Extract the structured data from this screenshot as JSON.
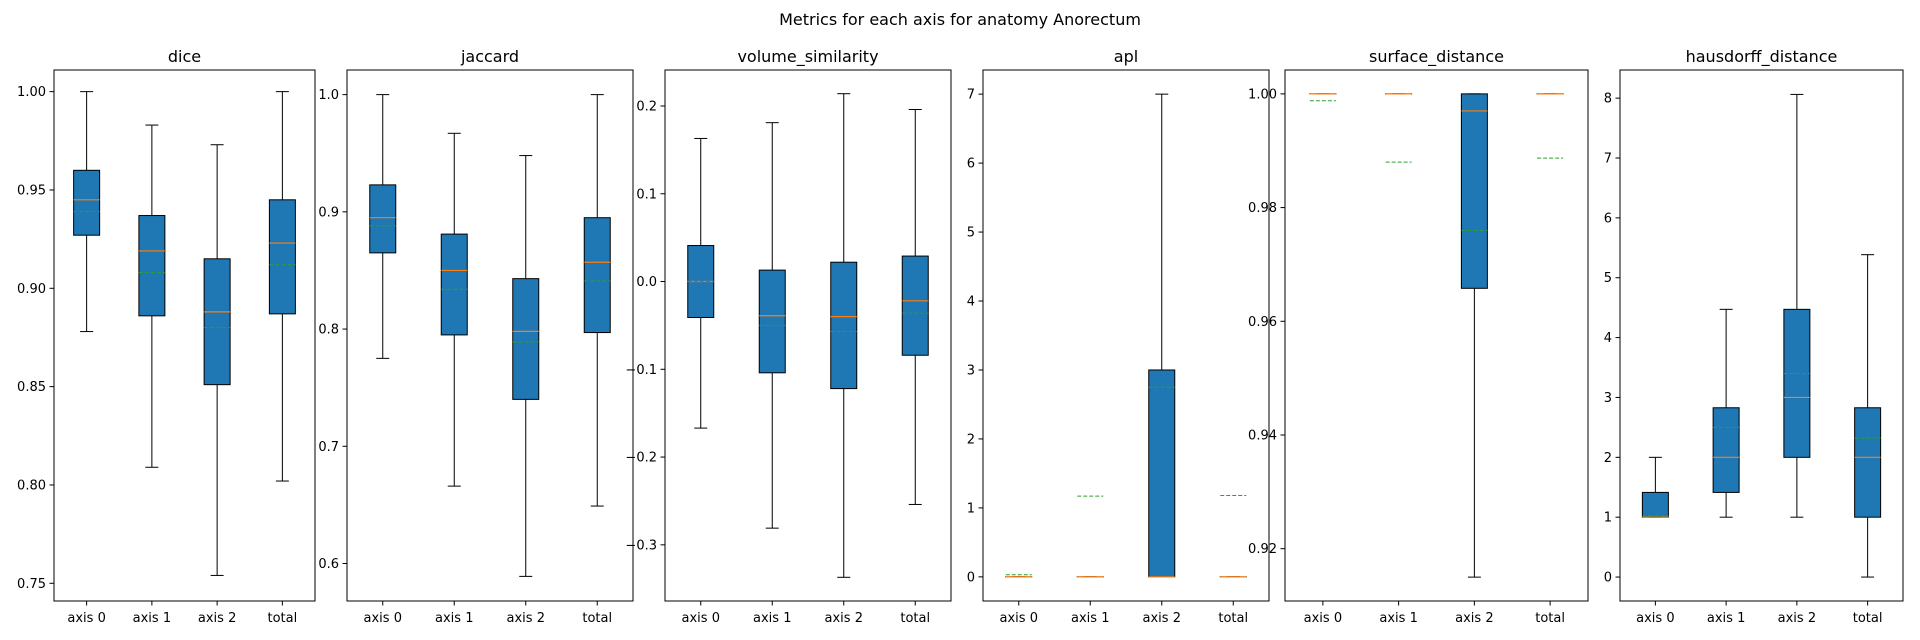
{
  "suptitle": "Metrics for each axis for anatomy Anorectum",
  "colors": {
    "box_fill": "#1f77b4",
    "median": "#ff7f0e",
    "mean": "#2ca02c",
    "axes": "#000000"
  },
  "chart_data": [
    {
      "type": "boxplot",
      "title": "dice",
      "categories": [
        "axis 0",
        "axis 1",
        "axis 2",
        "total"
      ],
      "ylim": [
        0.741,
        1.011
      ],
      "yticks": [
        0.75,
        0.8,
        0.85,
        0.9,
        0.95,
        1.0
      ],
      "ytick_labels": [
        "0.75",
        "0.80",
        "0.85",
        "0.90",
        "0.95",
        "1.00"
      ],
      "boxes": [
        {
          "whislo": 0.878,
          "q1": 0.927,
          "med": 0.945,
          "mean": 0.939,
          "q3": 0.96,
          "whishi": 1.0
        },
        {
          "whislo": 0.809,
          "q1": 0.886,
          "med": 0.919,
          "mean": 0.908,
          "q3": 0.937,
          "whishi": 0.983
        },
        {
          "whislo": 0.754,
          "q1": 0.851,
          "med": 0.888,
          "mean": 0.88,
          "q3": 0.915,
          "whishi": 0.973
        },
        {
          "whislo": 0.802,
          "q1": 0.887,
          "med": 0.923,
          "mean": 0.912,
          "q3": 0.945,
          "whishi": 1.0
        }
      ]
    },
    {
      "type": "boxplot",
      "title": "jaccard",
      "categories": [
        "axis 0",
        "axis 1",
        "axis 2",
        "total"
      ],
      "ylim": [
        0.568,
        1.021
      ],
      "yticks": [
        0.6,
        0.7,
        0.8,
        0.9,
        1.0
      ],
      "ytick_labels": [
        "0.6",
        "0.7",
        "0.8",
        "0.9",
        "1.0"
      ],
      "boxes": [
        {
          "whislo": 0.775,
          "q1": 0.865,
          "med": 0.895,
          "mean": 0.888,
          "q3": 0.923,
          "whishi": 1.0
        },
        {
          "whislo": 0.666,
          "q1": 0.795,
          "med": 0.85,
          "mean": 0.834,
          "q3": 0.881,
          "whishi": 0.967
        },
        {
          "whislo": 0.589,
          "q1": 0.74,
          "med": 0.798,
          "mean": 0.789,
          "q3": 0.843,
          "whishi": 0.948
        },
        {
          "whislo": 0.649,
          "q1": 0.797,
          "med": 0.857,
          "mean": 0.841,
          "q3": 0.895,
          "whishi": 1.0
        }
      ]
    },
    {
      "type": "boxplot",
      "title": "volume_similarity",
      "categories": [
        "axis 0",
        "axis 1",
        "axis 2",
        "total"
      ],
      "ylim": [
        -0.364,
        0.241
      ],
      "yticks": [
        -0.3,
        -0.2,
        -0.1,
        0.0,
        0.1,
        0.2
      ],
      "ytick_labels": [
        "−0.3",
        "−0.2",
        "−0.1",
        "0.0",
        "0.1",
        "0.2"
      ],
      "boxes": [
        {
          "whislo": -0.167,
          "q1": -0.041,
          "med": 0.0,
          "mean": 0.0,
          "q3": 0.041,
          "whishi": 0.163
        },
        {
          "whislo": -0.281,
          "q1": -0.104,
          "med": -0.039,
          "mean": -0.05,
          "q3": 0.013,
          "whishi": 0.181
        },
        {
          "whislo": -0.337,
          "q1": -0.122,
          "med": -0.04,
          "mean": -0.057,
          "q3": 0.022,
          "whishi": 0.214
        },
        {
          "whislo": -0.254,
          "q1": -0.084,
          "med": -0.022,
          "mean": -0.036,
          "q3": 0.029,
          "whishi": 0.196
        }
      ]
    },
    {
      "type": "boxplot",
      "title": "apl",
      "categories": [
        "axis 0",
        "axis 1",
        "axis 2",
        "total"
      ],
      "ylim": [
        -0.35,
        7.35
      ],
      "yticks": [
        0,
        1,
        2,
        3,
        4,
        5,
        6,
        7
      ],
      "ytick_labels": [
        "0",
        "1",
        "2",
        "3",
        "4",
        "5",
        "6",
        "7"
      ],
      "boxes": [
        {
          "whislo": 0.0,
          "q1": 0.0,
          "med": 0.0,
          "mean": 0.03,
          "q3": 0.0,
          "whishi": 0.0
        },
        {
          "whislo": 0.0,
          "q1": 0.0,
          "med": 0.0,
          "mean": 1.17,
          "q3": 0.0,
          "whishi": 0.0
        },
        {
          "whislo": 0.0,
          "q1": 0.0,
          "med": 0.0,
          "mean": 2.75,
          "q3": 3.0,
          "whishi": 7.0
        },
        {
          "whislo": 0.0,
          "q1": 0.0,
          "med": 0.0,
          "mean": 1.18,
          "q3": 0.0,
          "whishi": 0.0
        }
      ]
    },
    {
      "type": "boxplot",
      "title": "surface_distance",
      "categories": [
        "axis 0",
        "axis 1",
        "axis 2",
        "total"
      ],
      "ylim": [
        0.9108,
        1.0042
      ],
      "yticks": [
        0.92,
        0.94,
        0.96,
        0.98,
        1.0
      ],
      "ytick_labels": [
        "0.92",
        "0.94",
        "0.96",
        "0.98",
        "1.00"
      ],
      "boxes": [
        {
          "whislo": 1.0,
          "q1": 1.0,
          "med": 1.0,
          "mean": 0.9988,
          "q3": 1.0,
          "whishi": 1.0
        },
        {
          "whislo": 1.0,
          "q1": 1.0,
          "med": 1.0,
          "mean": 0.988,
          "q3": 1.0,
          "whishi": 1.0
        },
        {
          "whislo": 0.915,
          "q1": 0.9658,
          "med": 0.997,
          "mean": 0.976,
          "q3": 1.0,
          "whishi": 1.0
        },
        {
          "whislo": 1.0,
          "q1": 1.0,
          "med": 1.0,
          "mean": 0.9887,
          "q3": 1.0,
          "whishi": 1.0
        }
      ]
    },
    {
      "type": "boxplot",
      "title": "hausdorff_distance",
      "categories": [
        "axis 0",
        "axis 1",
        "axis 2",
        "total"
      ],
      "ylim": [
        -0.4,
        8.47
      ],
      "yticks": [
        0,
        1,
        2,
        3,
        4,
        5,
        6,
        7,
        8
      ],
      "ytick_labels": [
        "0",
        "1",
        "2",
        "3",
        "4",
        "5",
        "6",
        "7",
        "8"
      ],
      "boxes": [
        {
          "whislo": 1.0,
          "q1": 1.0,
          "med": 1.0,
          "mean": 1.02,
          "q3": 1.414,
          "whishi": 2.0
        },
        {
          "whislo": 1.0,
          "q1": 1.414,
          "med": 2.0,
          "mean": 2.5,
          "q3": 2.828,
          "whishi": 4.472
        },
        {
          "whislo": 1.0,
          "q1": 2.0,
          "med": 3.0,
          "mean": 3.4,
          "q3": 4.472,
          "whishi": 8.062
        },
        {
          "whislo": 0.0,
          "q1": 1.0,
          "med": 2.0,
          "mean": 2.32,
          "q3": 2.828,
          "whishi": 5.385
        }
      ]
    }
  ]
}
